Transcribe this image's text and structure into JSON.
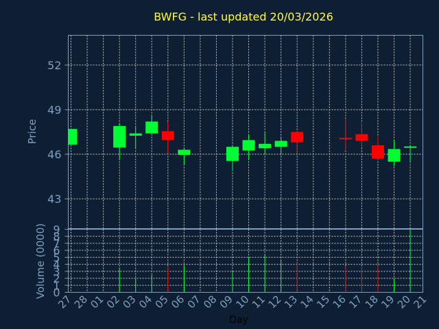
{
  "chart_data": {
    "type": "candlestick",
    "title": "BWFG - last updated 20/03/2026",
    "xlabel": "Day",
    "price_ylabel": "Price",
    "volume_ylabel": "Volume (0000)",
    "colors": {
      "background": "#0f1f33",
      "title": "#ffff33",
      "axis": "#7f9fbf",
      "grid": "#c8c8c8",
      "up": "#00ff33",
      "down": "#ff0000"
    },
    "grid": true,
    "price_ticks": [
      43,
      46,
      49,
      52
    ],
    "price_ylim": [
      41.0,
      54.0
    ],
    "volume_ticks": [
      0,
      1,
      2,
      3,
      4,
      5,
      6,
      7,
      8,
      9
    ],
    "volume_ylim": [
      0,
      9
    ],
    "x_tick_labels": [
      "27",
      "28",
      "01",
      "02",
      "03",
      "04",
      "05",
      "06",
      "07",
      "08",
      "09",
      "10",
      "11",
      "12",
      "13",
      "14",
      "15",
      "16",
      "17",
      "18",
      "19",
      "20",
      "21"
    ],
    "candles": [
      {
        "i": 0,
        "open": 46.65,
        "close": 47.7,
        "high": 47.7,
        "low": 46.65,
        "volume": 0
      },
      {
        "i": 3,
        "open": 46.45,
        "close": 47.9,
        "high": 48.1,
        "low": 45.6,
        "volume": 3.3
      },
      {
        "i": 4,
        "open": 47.25,
        "close": 47.4,
        "high": 47.85,
        "low": 46.35,
        "volume": 2.0
      },
      {
        "i": 5,
        "open": 47.4,
        "close": 48.2,
        "high": 48.65,
        "low": 47.4,
        "volume": 2.5
      },
      {
        "i": 6,
        "open": 47.55,
        "close": 46.95,
        "high": 48.2,
        "low": 46.05,
        "volume": 3.5
      },
      {
        "i": 7,
        "open": 45.95,
        "close": 46.3,
        "high": 46.35,
        "low": 45.3,
        "volume": 3.8
      },
      {
        "i": 10,
        "open": 45.55,
        "close": 46.5,
        "high": 46.55,
        "low": 44.9,
        "volume": 3.0
      },
      {
        "i": 11,
        "open": 46.25,
        "close": 46.95,
        "high": 47.35,
        "low": 45.6,
        "volume": 5.0
      },
      {
        "i": 12,
        "open": 46.4,
        "close": 46.7,
        "high": 47.5,
        "low": 46.0,
        "volume": 5.3
      },
      {
        "i": 13,
        "open": 46.5,
        "close": 46.9,
        "high": 47.1,
        "low": 45.95,
        "volume": 4.5
      },
      {
        "i": 14,
        "open": 47.5,
        "close": 46.8,
        "high": 47.55,
        "low": 46.1,
        "volume": 4.2
      },
      {
        "i": 17,
        "open": 47.05,
        "close": 46.98,
        "high": 48.35,
        "low": 46.3,
        "volume": 3.7
      },
      {
        "i": 18,
        "open": 47.35,
        "close": 46.9,
        "high": 48.1,
        "low": 46.45,
        "volume": 3.5
      },
      {
        "i": 19,
        "open": 46.6,
        "close": 45.7,
        "high": 47.2,
        "low": 45.65,
        "volume": 3.8
      },
      {
        "i": 20,
        "open": 45.5,
        "close": 46.35,
        "high": 46.95,
        "low": 45.2,
        "volume": 1.8
      },
      {
        "i": 21,
        "open": 46.4,
        "close": 46.48,
        "high": 46.55,
        "low": 45.5,
        "volume": 9.0
      }
    ]
  }
}
